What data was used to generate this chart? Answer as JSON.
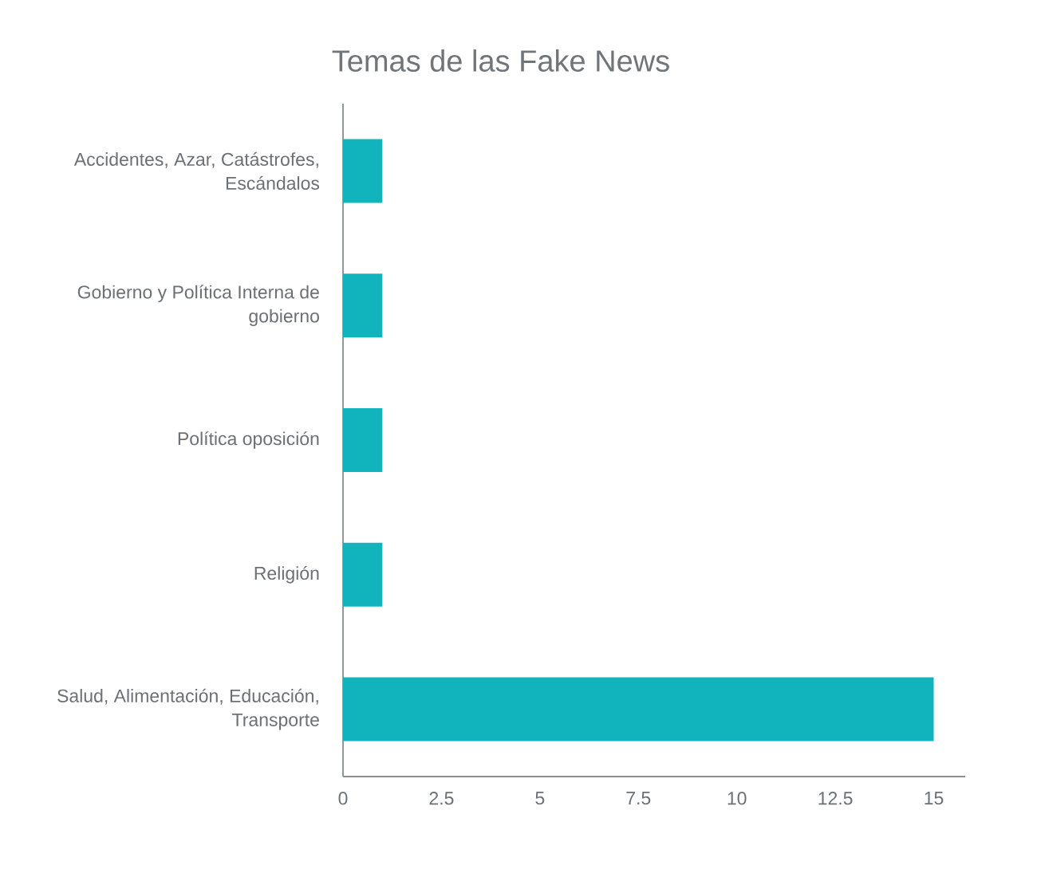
{
  "chart_data": {
    "type": "bar",
    "orientation": "horizontal",
    "title": "Temas de las Fake News",
    "categories": [
      "Accidentes, Azar, Catástrofes, Escándalos",
      "Gobierno y Política Interna de gobierno",
      "Política oposición",
      "Religión",
      "Salud, Alimentación, Educación, Transporte"
    ],
    "values": [
      1,
      1,
      1,
      1,
      15
    ],
    "color": "#11b3bd",
    "xlim": [
      0,
      15.8
    ],
    "xticks": [
      0,
      2.5,
      5,
      7.5,
      10,
      12.5,
      15
    ],
    "grid": false
  }
}
